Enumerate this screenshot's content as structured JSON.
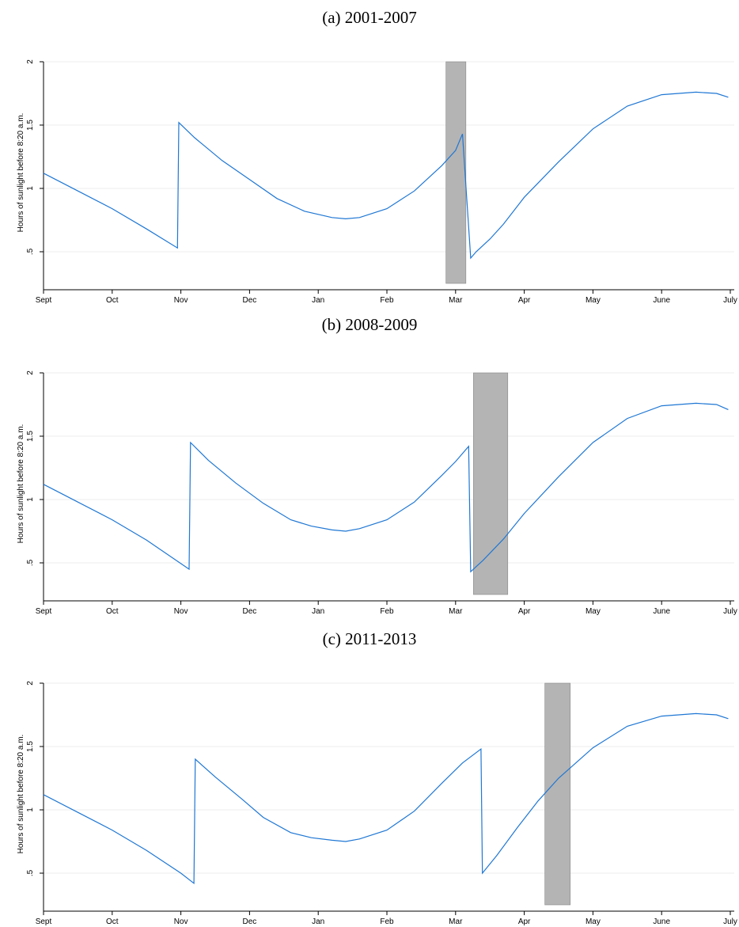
{
  "chart_data": [
    {
      "type": "line",
      "title": "(a) 2001-2007",
      "ylabel": "Hours of sunlight before 8:20 a.m.",
      "xlabel": "",
      "ylim": [
        0.25,
        2.0
      ],
      "yticks": [
        ".5",
        "1",
        "1.5",
        "2"
      ],
      "categories": [
        "Sept",
        "Oct",
        "Nov",
        "Dec",
        "Jan",
        "Feb",
        "Mar",
        "Apr",
        "May",
        "June",
        "July"
      ],
      "grid": true,
      "line_color": "#1f77d4",
      "shade_color": "#b4b4b4",
      "shaded_period": {
        "start_month_offset": 5.86,
        "end_month_offset": 6.15
      },
      "x": [
        0,
        0.5,
        1,
        1.5,
        1.95,
        1.97,
        2.2,
        2.6,
        3,
        3.4,
        3.8,
        4.2,
        4.4,
        4.6,
        5,
        5.4,
        5.8,
        6.0,
        6.1,
        6.22,
        6.3,
        6.5,
        6.7,
        7,
        7.5,
        8,
        8.5,
        9,
        9.5,
        9.8,
        9.97
      ],
      "series": [
        {
          "values": [
            1.12,
            0.98,
            0.84,
            0.68,
            0.53,
            1.52,
            1.4,
            1.22,
            1.07,
            0.92,
            0.82,
            0.77,
            0.76,
            0.77,
            0.84,
            0.98,
            1.18,
            1.3,
            1.43,
            0.45,
            0.5,
            0.6,
            0.72,
            0.93,
            1.21,
            1.47,
            1.65,
            1.74,
            1.76,
            1.75,
            1.72
          ]
        }
      ]
    },
    {
      "type": "line",
      "title": "(b) 2008-2009",
      "ylabel": "Hours of sunlight before 8:20 a.m.",
      "xlabel": "",
      "ylim": [
        0.25,
        2.0
      ],
      "yticks": [
        ".5",
        "1",
        "1.5",
        "2"
      ],
      "categories": [
        "Sept",
        "Oct",
        "Nov",
        "Dec",
        "Jan",
        "Feb",
        "Mar",
        "Apr",
        "May",
        "June",
        "July"
      ],
      "grid": true,
      "line_color": "#1f77d4",
      "shade_color": "#b4b4b4",
      "shaded_period": {
        "start_month_offset": 6.26,
        "end_month_offset": 6.76
      },
      "x": [
        0,
        0.5,
        1,
        1.5,
        2.12,
        2.14,
        2.4,
        2.8,
        3.2,
        3.6,
        3.9,
        4.2,
        4.4,
        4.6,
        5,
        5.4,
        5.8,
        6.0,
        6.19,
        6.22,
        6.4,
        6.7,
        7,
        7.5,
        8,
        8.5,
        9,
        9.5,
        9.8,
        9.97
      ],
      "series": [
        {
          "values": [
            1.12,
            0.98,
            0.84,
            0.68,
            0.45,
            1.45,
            1.31,
            1.13,
            0.97,
            0.84,
            0.79,
            0.76,
            0.75,
            0.77,
            0.84,
            0.98,
            1.19,
            1.3,
            1.42,
            0.43,
            0.52,
            0.69,
            0.89,
            1.18,
            1.45,
            1.64,
            1.74,
            1.76,
            1.75,
            1.71
          ]
        }
      ]
    },
    {
      "type": "line",
      "title": "(c) 2011-2013",
      "ylabel": "Hours of sunlight before 8:20 a.m.",
      "xlabel": "",
      "ylim": [
        0.25,
        2.0
      ],
      "yticks": [
        ".5",
        "1",
        "1.5",
        "2"
      ],
      "categories": [
        "Sept",
        "Oct",
        "Nov",
        "Dec",
        "Jan",
        "Feb",
        "Mar",
        "Apr",
        "May",
        "June",
        "July"
      ],
      "grid": true,
      "line_color": "#1f77d4",
      "shade_color": "#b4b4b4",
      "shaded_period": {
        "start_month_offset": 7.3,
        "end_month_offset": 7.67
      },
      "x": [
        0,
        0.5,
        1,
        1.5,
        2.0,
        2.19,
        2.21,
        2.5,
        2.9,
        3.2,
        3.6,
        3.9,
        4.2,
        4.4,
        4.6,
        5,
        5.4,
        5.8,
        6.1,
        6.37,
        6.39,
        6.6,
        6.9,
        7.2,
        7.5,
        8,
        8.5,
        9,
        9.5,
        9.8,
        9.97
      ],
      "series": [
        {
          "values": [
            1.12,
            0.98,
            0.84,
            0.68,
            0.5,
            0.42,
            1.4,
            1.26,
            1.08,
            0.94,
            0.82,
            0.78,
            0.76,
            0.75,
            0.77,
            0.84,
            0.99,
            1.21,
            1.37,
            1.48,
            0.5,
            0.64,
            0.86,
            1.07,
            1.25,
            1.49,
            1.66,
            1.74,
            1.76,
            1.75,
            1.72
          ]
        }
      ]
    }
  ]
}
